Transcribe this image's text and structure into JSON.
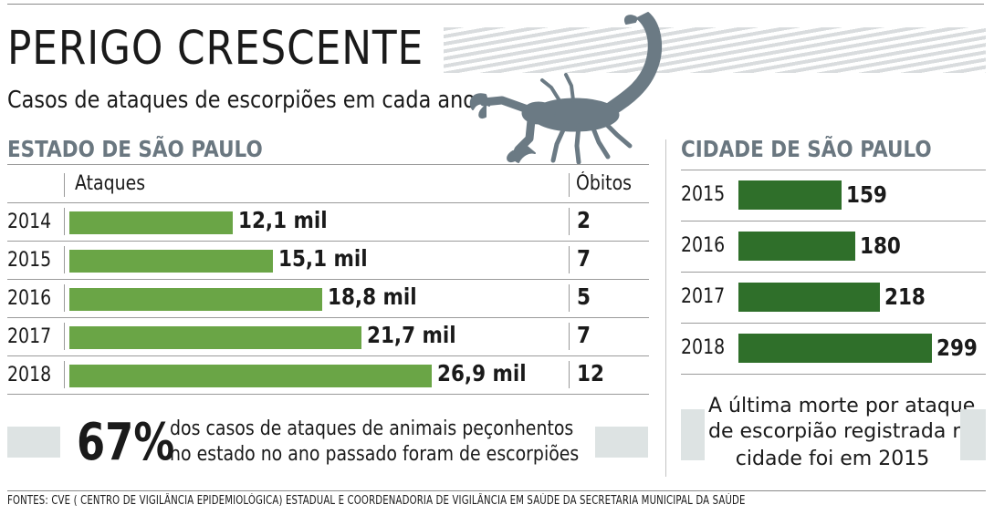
{
  "header": {
    "title": "PERIGO CRESCENTE",
    "subtitle": "Casos de ataques de escorpiões em cada ano"
  },
  "colors": {
    "state_bar": "#6aa546",
    "city_bar": "#2f6f2a",
    "section_title": "#6a7780",
    "note_box": "#dde3e3"
  },
  "icons": {
    "scorpion": "scorpion-icon"
  },
  "chart_data": [
    {
      "type": "bar",
      "orientation": "horizontal",
      "title": "ESTADO DE SÃO PAULO",
      "column_headers": {
        "attacks": "Ataques",
        "deaths": "Óbitos"
      },
      "categories": [
        "2014",
        "2015",
        "2016",
        "2017",
        "2018"
      ],
      "series": [
        {
          "name": "Ataques",
          "values": [
            12.1,
            15.1,
            18.8,
            21.7,
            26.9
          ],
          "unit": "mil",
          "labels": [
            "12,1 mil",
            "15,1 mil",
            "18,8 mil",
            "21,7 mil",
            "26,9 mil"
          ]
        },
        {
          "name": "Óbitos",
          "values": [
            2,
            7,
            5,
            7,
            12
          ],
          "labels": [
            "2",
            "7",
            "5",
            "7",
            "12"
          ]
        }
      ],
      "xlim": [
        0,
        30
      ]
    },
    {
      "type": "bar",
      "orientation": "horizontal",
      "title": "CIDADE DE SÃO PAULO",
      "categories": [
        "2015",
        "2016",
        "2017",
        "2018"
      ],
      "series": [
        {
          "name": "Ataques",
          "values": [
            159,
            180,
            218,
            299
          ],
          "labels": [
            "159",
            "180",
            "218",
            "299"
          ]
        }
      ],
      "xlim": [
        0,
        350
      ]
    }
  ],
  "state_note": {
    "percent": "67%",
    "line1": "dos casos de ataques de animais peçonhentos",
    "line2": "no estado no ano passado foram de escorpiões"
  },
  "city_note": {
    "line1": "A última morte por ataque",
    "line2": "de escorpião registrada na",
    "line3": "cidade foi em 2015"
  },
  "source": "FONTES: CVE ( CENTRO DE VIGILÂNCIA EPIDEMIOLÓGICA) ESTADUAL E COORDENADORIA DE VIGILÂNCIA EM SAÚDE DA SECRETARIA MUNICIPAL DA SAÚDE"
}
